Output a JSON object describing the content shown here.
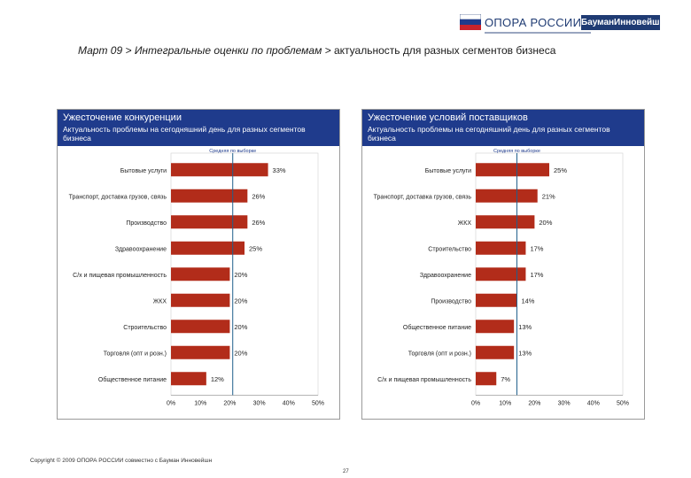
{
  "header": {
    "logo_name": "ОПОРА РОССИИ",
    "partner_logo": "БауманИнновейшн",
    "title_crumb": "Март 09 > Интегральные оценки по проблемам >",
    "title_rest": " актуальность для разных сегментов бизнеса"
  },
  "colors": {
    "bar": "#b22c1a",
    "header": "#1f3b8c",
    "avg_line": "#1f5f8c"
  },
  "chart_data": [
    {
      "type": "bar",
      "orientation": "horizontal",
      "title": "Ужесточение конкуренции",
      "subtitle": "Актуальность проблемы на сегодняшний день для разных сегментов бизнеса",
      "average_label": "Средняя по выборке",
      "average_value": 0.21,
      "categories": [
        "Бытовые услуги",
        "Транспорт, доставка грузов, связь",
        "Производство",
        "Здравоохранение",
        "С/х и пищевая промышленность",
        "ЖКХ",
        "Строительство",
        "Торговля (опт и розн.)",
        "Общественное питание"
      ],
      "values": [
        0.33,
        0.26,
        0.26,
        0.25,
        0.2,
        0.2,
        0.2,
        0.2,
        0.12
      ],
      "value_labels": [
        "33%",
        "26%",
        "26%",
        "25%",
        "20%",
        "20%",
        "20%",
        "20%",
        "12%"
      ],
      "xlim": [
        0,
        0.5
      ],
      "xticks": [
        "0%",
        "10%",
        "20%",
        "30%",
        "40%",
        "50%"
      ]
    },
    {
      "type": "bar",
      "orientation": "horizontal",
      "title": "Ужесточение условий поставщиков",
      "subtitle": "Актуальность проблемы на сегодняшний день для разных сегментов бизнеса",
      "average_label": "Средняя по выборке",
      "average_value": 0.14,
      "categories": [
        "Бытовые услуги",
        "Транспорт, доставка грузов, связь",
        "ЖКХ",
        "Строительство",
        "Здравоохранение",
        "Производство",
        "Общественное питание",
        "Торговля (опт и розн.)",
        "С/х и пищевая промышленность"
      ],
      "values": [
        0.25,
        0.21,
        0.2,
        0.17,
        0.17,
        0.14,
        0.13,
        0.13,
        0.07
      ],
      "value_labels": [
        "25%",
        "21%",
        "20%",
        "17%",
        "17%",
        "14%",
        "13%",
        "13%",
        "7%"
      ],
      "xlim": [
        0,
        0.5
      ],
      "xticks": [
        "0%",
        "10%",
        "20%",
        "30%",
        "40%",
        "50%"
      ]
    }
  ],
  "footer": {
    "copyright": "Copyright © 2009 ОПОРА РОССИИ совместно с Бауман Инновейшн",
    "page_number": "27"
  }
}
